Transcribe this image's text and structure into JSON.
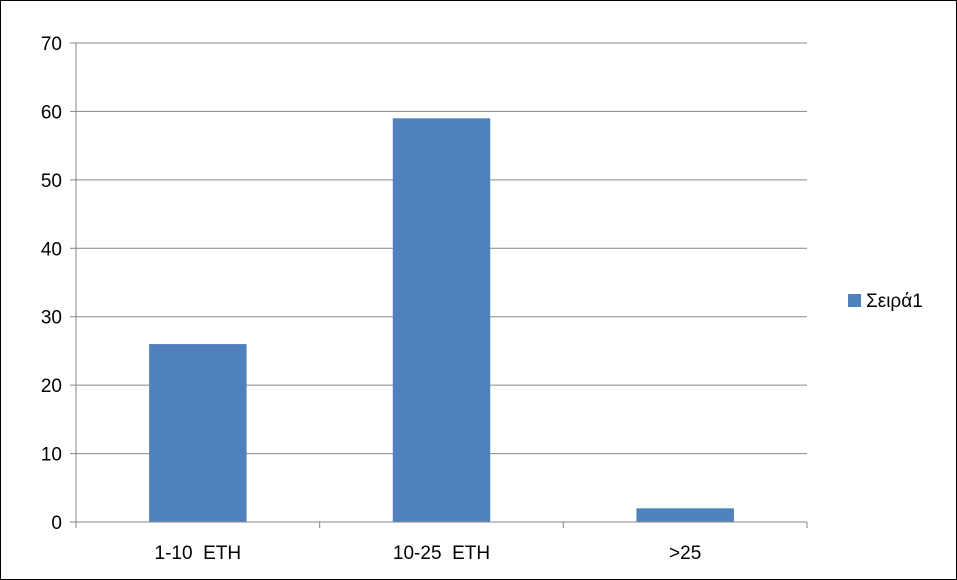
{
  "chart_data": {
    "type": "bar",
    "title": "",
    "xlabel": "",
    "ylabel": "",
    "categories": [
      "1-10  ETH",
      "10-25  ETH",
      ">25"
    ],
    "series": [
      {
        "name": "Σειρά1",
        "values": [
          26,
          59,
          2
        ],
        "color": "#4F81BD"
      }
    ],
    "ylim": [
      0,
      70
    ],
    "yticks": [
      0,
      10,
      20,
      30,
      40,
      50,
      60,
      70
    ],
    "grid": true,
    "legend_position": "right"
  }
}
